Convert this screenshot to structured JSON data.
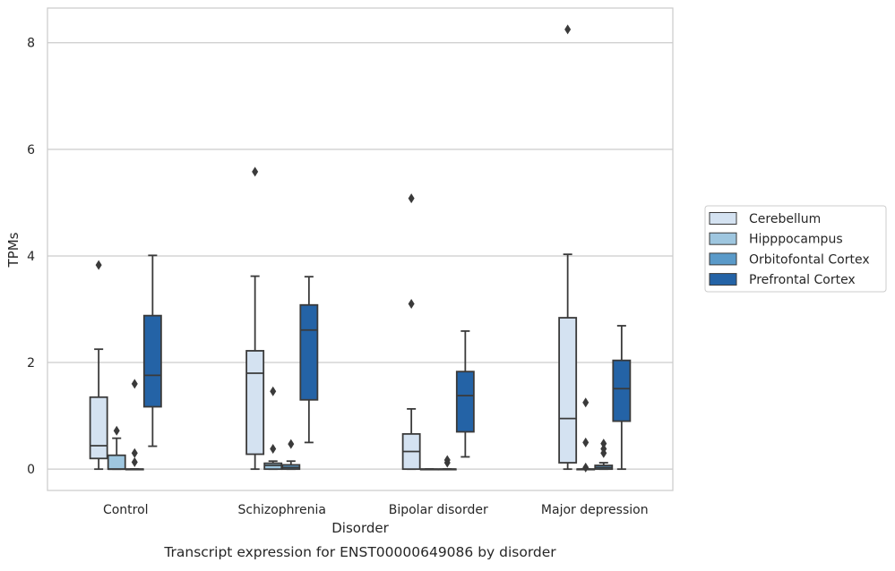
{
  "caption": "Transcript expression for ENST00000649086 by disorder",
  "chart_data": {
    "type": "box",
    "xlabel": "Disorder",
    "ylabel": "TPMs",
    "ylim": [
      -0.4,
      8.65
    ],
    "yticks": [
      0,
      2,
      4,
      6,
      8
    ],
    "grid": "horizontal",
    "legend_position": "right",
    "categories": [
      "Control",
      "Schizophrenia",
      "Bipolar disorder",
      "Major depression"
    ],
    "series": [
      {
        "name": "Cerebellum",
        "color": "#d4e2f1",
        "boxes": [
          {
            "whislo": 0.0,
            "q1": 0.2,
            "med": 0.44,
            "q3": 1.35,
            "whishi": 2.25,
            "fliers": [
              3.83
            ]
          },
          {
            "whislo": 0.0,
            "q1": 0.28,
            "med": 1.8,
            "q3": 2.22,
            "whishi": 3.62,
            "fliers": [
              5.58
            ]
          },
          {
            "whislo": 0.0,
            "q1": 0.0,
            "med": 0.33,
            "q3": 0.66,
            "whishi": 1.13,
            "fliers": [
              3.1,
              5.08
            ]
          },
          {
            "whislo": 0.0,
            "q1": 0.12,
            "med": 0.95,
            "q3": 2.84,
            "whishi": 4.03,
            "fliers": [
              8.25
            ]
          }
        ]
      },
      {
        "name": "Hipppocampus",
        "color": "#9ec6df",
        "boxes": [
          {
            "whislo": 0.0,
            "q1": 0.0,
            "med": 0.0,
            "q3": 0.26,
            "whishi": 0.58,
            "fliers": [
              0.72
            ]
          },
          {
            "whislo": 0.0,
            "q1": 0.0,
            "med": 0.07,
            "q3": 0.11,
            "whishi": 0.15,
            "fliers": [
              0.38,
              1.46
            ]
          },
          {
            "whislo": 0.0,
            "q1": 0.0,
            "med": 0.0,
            "q3": 0.0,
            "whishi": 0.0,
            "fliers": []
          },
          {
            "whislo": 0.0,
            "q1": 0.0,
            "med": 0.0,
            "q3": 0.0,
            "whishi": 0.0,
            "fliers": [
              0.03,
              0.5,
              1.25
            ]
          }
        ]
      },
      {
        "name": "Orbitofontal Cortex",
        "color": "#5a9ac9",
        "boxes": [
          {
            "whislo": 0.0,
            "q1": 0.0,
            "med": 0.0,
            "q3": 0.0,
            "whishi": 0.0,
            "fliers": [
              0.13,
              0.3,
              1.6
            ]
          },
          {
            "whislo": 0.0,
            "q1": 0.0,
            "med": 0.03,
            "q3": 0.08,
            "whishi": 0.15,
            "fliers": [
              0.47
            ]
          },
          {
            "whislo": 0.0,
            "q1": 0.0,
            "med": 0.0,
            "q3": 0.0,
            "whishi": 0.0,
            "fliers": [
              0.12,
              0.17
            ]
          },
          {
            "whislo": 0.0,
            "q1": 0.0,
            "med": 0.03,
            "q3": 0.07,
            "whishi": 0.12,
            "fliers": [
              0.3,
              0.38,
              0.48
            ]
          }
        ]
      },
      {
        "name": "Prefrontal Cortex",
        "color": "#2463a6",
        "boxes": [
          {
            "whislo": 0.43,
            "q1": 1.17,
            "med": 1.76,
            "q3": 2.88,
            "whishi": 4.01,
            "fliers": []
          },
          {
            "whislo": 0.5,
            "q1": 1.3,
            "med": 2.61,
            "q3": 3.08,
            "whishi": 3.61,
            "fliers": []
          },
          {
            "whislo": 0.23,
            "q1": 0.7,
            "med": 1.38,
            "q3": 1.83,
            "whishi": 2.59,
            "fliers": []
          },
          {
            "whislo": 0.0,
            "q1": 0.9,
            "med": 1.51,
            "q3": 2.04,
            "whishi": 2.69,
            "fliers": []
          }
        ]
      }
    ]
  }
}
